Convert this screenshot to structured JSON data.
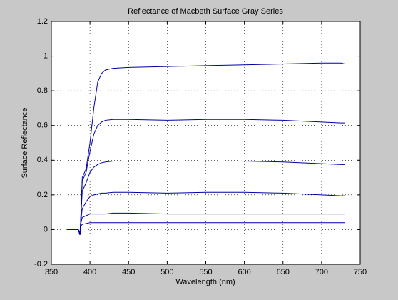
{
  "chart_data": {
    "type": "line",
    "title": "Reflectance of Macbeth Surface Gray Series",
    "x_label": "Wavelength (nm)",
    "y_label": "Surface Reflectance",
    "x": [
      370,
      380,
      385,
      387,
      388,
      390,
      395,
      400,
      405,
      410,
      415,
      420,
      430,
      450,
      500,
      550,
      600,
      650,
      700,
      725,
      730
    ],
    "series": [
      {
        "color": "#0000a8",
        "values": [
          0,
          0,
          0,
          -0.03,
          0.05,
          0.3,
          0.35,
          0.5,
          0.7,
          0.85,
          0.9,
          0.92,
          0.93,
          0.935,
          0.94,
          0.945,
          0.95,
          0.955,
          0.96,
          0.96,
          0.955
        ]
      },
      {
        "color": "#0000a8",
        "values": [
          0,
          0,
          0,
          -0.03,
          0.05,
          0.28,
          0.33,
          0.45,
          0.55,
          0.6,
          0.62,
          0.63,
          0.635,
          0.635,
          0.63,
          0.635,
          0.635,
          0.63,
          0.62,
          0.615,
          0.615
        ]
      },
      {
        "color": "#0000a8",
        "values": [
          0,
          0,
          0,
          -0.03,
          0.05,
          0.22,
          0.27,
          0.33,
          0.36,
          0.375,
          0.385,
          0.39,
          0.395,
          0.395,
          0.395,
          0.395,
          0.395,
          0.39,
          0.38,
          0.375,
          0.375
        ]
      },
      {
        "color": "#0000a8",
        "values": [
          0,
          0,
          0,
          -0.03,
          0.04,
          0.12,
          0.16,
          0.19,
          0.2,
          0.205,
          0.21,
          0.21,
          0.215,
          0.215,
          0.21,
          0.215,
          0.215,
          0.21,
          0.2,
          0.195,
          0.195
        ]
      },
      {
        "color": "#0000a8",
        "values": [
          0,
          0,
          0,
          -0.03,
          0.03,
          0.07,
          0.08,
          0.09,
          0.09,
          0.09,
          0.09,
          0.09,
          0.095,
          0.095,
          0.09,
          0.09,
          0.09,
          0.09,
          0.09,
          0.09,
          0.09
        ]
      },
      {
        "color": "#0000a8",
        "values": [
          0,
          0,
          0,
          -0.03,
          0.02,
          0.03,
          0.035,
          0.04,
          0.04,
          0.04,
          0.04,
          0.04,
          0.04,
          0.04,
          0.04,
          0.04,
          0.04,
          0.04,
          0.04,
          0.04,
          0.04
        ]
      }
    ],
    "xlim": [
      350,
      750
    ],
    "xticks": [
      350,
      400,
      450,
      500,
      550,
      600,
      650,
      700,
      750
    ],
    "ylim": [
      -0.2,
      1.2
    ],
    "yticks": [
      -0.2,
      0,
      0.2,
      0.4,
      0.6,
      0.8,
      1,
      1.2
    ],
    "grid": true
  }
}
